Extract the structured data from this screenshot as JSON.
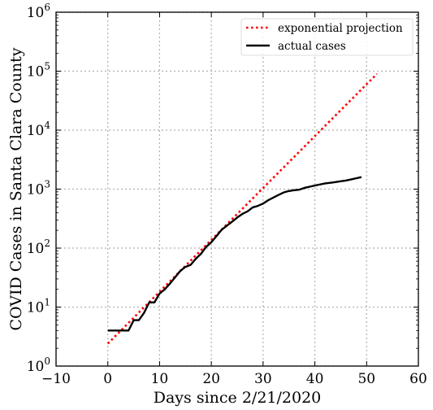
{
  "chart_data": {
    "type": "line",
    "title": "",
    "xlabel": "Days since 2/21/2020",
    "ylabel": "COVID Cases in Santa Clara County",
    "xlim": [
      -10,
      60
    ],
    "ylim": [
      1,
      1000000
    ],
    "yscale": "log",
    "grid": true,
    "legend_position": "top-right",
    "x_ticks": [
      -10,
      0,
      10,
      20,
      30,
      40,
      50,
      60
    ],
    "x_tick_labels": [
      "−10",
      "0",
      "10",
      "20",
      "30",
      "40",
      "50",
      "60"
    ],
    "y_ticks": [
      1,
      10,
      100,
      1000,
      10000,
      100000,
      1000000
    ],
    "y_tick_labels": [
      {
        "base": "10",
        "exp": "0"
      },
      {
        "base": "10",
        "exp": "1"
      },
      {
        "base": "10",
        "exp": "2"
      },
      {
        "base": "10",
        "exp": "3"
      },
      {
        "base": "10",
        "exp": "4"
      },
      {
        "base": "10",
        "exp": "5"
      },
      {
        "base": "10",
        "exp": "6"
      }
    ],
    "series": [
      {
        "name": "exponential projection",
        "style": "dotted",
        "color": "#ff0000",
        "x": [
          0,
          52
        ],
        "y": [
          2.4,
          90000
        ]
      },
      {
        "name": "actual cases",
        "style": "solid",
        "color": "#000000",
        "x": [
          0,
          1,
          2,
          3,
          4,
          5,
          6,
          7,
          8,
          9,
          10,
          11,
          12,
          13,
          14,
          15,
          16,
          17,
          18,
          19,
          20,
          21,
          22,
          23,
          24,
          25,
          26,
          27,
          28,
          29,
          30,
          31,
          32,
          33,
          34,
          35,
          36,
          37,
          38,
          39,
          40,
          41,
          42,
          43,
          44,
          45,
          46,
          47,
          48,
          49
        ],
        "y": [
          4,
          4,
          4,
          4,
          4,
          6,
          6,
          8,
          12,
          12,
          17,
          20,
          25,
          32,
          41,
          48,
          52,
          66,
          80,
          105,
          126,
          160,
          205,
          240,
          280,
          330,
          380,
          420,
          490,
          520,
          570,
          650,
          720,
          800,
          880,
          930,
          960,
          980,
          1050,
          1100,
          1150,
          1200,
          1250,
          1280,
          1320,
          1360,
          1400,
          1460,
          1530,
          1600
        ]
      }
    ]
  }
}
